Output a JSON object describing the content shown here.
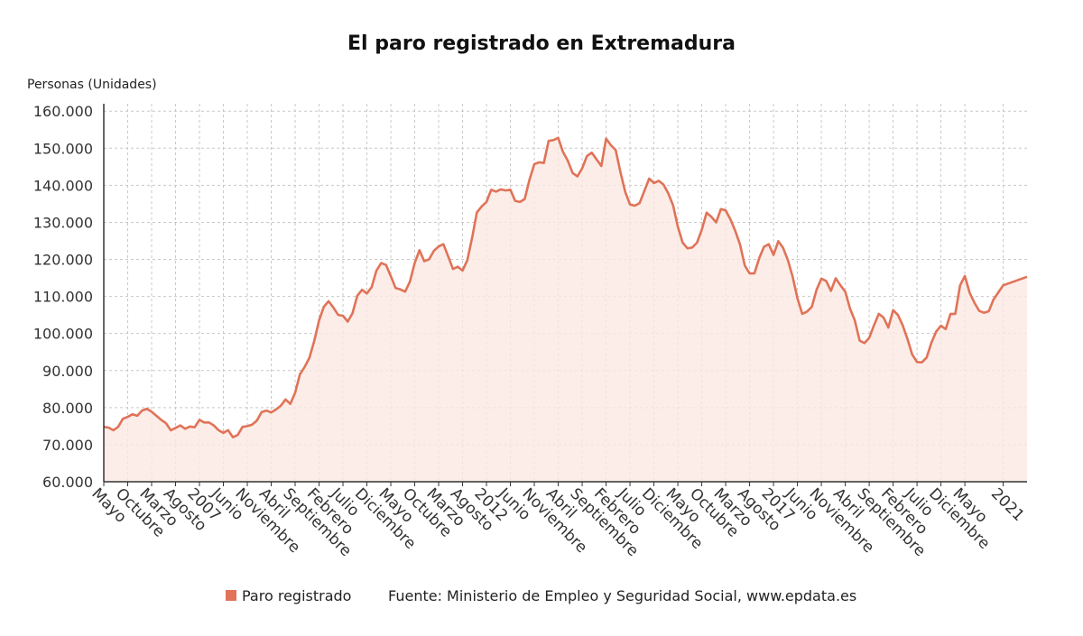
{
  "chart_data": {
    "type": "area",
    "title": "El paro registrado en Extremadura",
    "ylabel": "Personas (Unidades)",
    "ylim": [
      60000,
      162000
    ],
    "yticks": [
      60000,
      70000,
      80000,
      90000,
      100000,
      110000,
      120000,
      130000,
      140000,
      150000,
      160000
    ],
    "ytick_labels": [
      "60.000",
      "70.000",
      "80.000",
      "90.000",
      "100.000",
      "110.000",
      "120.000",
      "130.000",
      "140.000",
      "150.000",
      "160.000"
    ],
    "x_start": "2005-05",
    "x_end": "2021-06",
    "x_ticks": [
      {
        "date": "2005-05",
        "label": "Mayo"
      },
      {
        "date": "2005-10",
        "label": "Octubre"
      },
      {
        "date": "2006-03",
        "label": "Marzo"
      },
      {
        "date": "2006-08",
        "label": "Agosto"
      },
      {
        "date": "2007-01",
        "label": "2007"
      },
      {
        "date": "2007-06",
        "label": "Junio"
      },
      {
        "date": "2007-11",
        "label": "Noviembre"
      },
      {
        "date": "2008-04",
        "label": "Abril"
      },
      {
        "date": "2008-09",
        "label": "Septiembre"
      },
      {
        "date": "2009-02",
        "label": "Febrero"
      },
      {
        "date": "2009-07",
        "label": "Julio"
      },
      {
        "date": "2009-12",
        "label": "Diciembre"
      },
      {
        "date": "2010-05",
        "label": "Mayo"
      },
      {
        "date": "2010-10",
        "label": "Octubre"
      },
      {
        "date": "2011-03",
        "label": "Marzo"
      },
      {
        "date": "2011-08",
        "label": "Agosto"
      },
      {
        "date": "2012-01",
        "label": "2012"
      },
      {
        "date": "2012-06",
        "label": "Junio"
      },
      {
        "date": "2012-11",
        "label": "Noviembre"
      },
      {
        "date": "2013-04",
        "label": "Abril"
      },
      {
        "date": "2013-09",
        "label": "Septiembre"
      },
      {
        "date": "2014-02",
        "label": "Febrero"
      },
      {
        "date": "2014-07",
        "label": "Julio"
      },
      {
        "date": "2014-12",
        "label": "Diciembre"
      },
      {
        "date": "2015-05",
        "label": "Mayo"
      },
      {
        "date": "2015-10",
        "label": "Octubre"
      },
      {
        "date": "2016-03",
        "label": "Marzo"
      },
      {
        "date": "2016-08",
        "label": "Agosto"
      },
      {
        "date": "2017-01",
        "label": "2017"
      },
      {
        "date": "2017-06",
        "label": "Junio"
      },
      {
        "date": "2017-11",
        "label": "Noviembre"
      },
      {
        "date": "2018-04",
        "label": "Abril"
      },
      {
        "date": "2018-09",
        "label": "Septiembre"
      },
      {
        "date": "2019-02",
        "label": "Febrero"
      },
      {
        "date": "2019-07",
        "label": "Julio"
      },
      {
        "date": "2019-12",
        "label": "Diciembre"
      },
      {
        "date": "2020-05",
        "label": "Mayo"
      },
      {
        "date": "2021-01",
        "label": "2021"
      }
    ],
    "grid": true,
    "legend": "bottom",
    "series": [
      {
        "name": "Paro registrado",
        "color": "#e07358",
        "points": [
          [
            "2005-05",
            74800
          ],
          [
            "2005-06",
            74600
          ],
          [
            "2005-07",
            73900
          ],
          [
            "2005-08",
            74800
          ],
          [
            "2005-09",
            77000
          ],
          [
            "2005-10",
            77500
          ],
          [
            "2005-11",
            78200
          ],
          [
            "2005-12",
            77800
          ],
          [
            "2006-01",
            79200
          ],
          [
            "2006-02",
            79700
          ],
          [
            "2006-03",
            78900
          ],
          [
            "2006-04",
            77800
          ],
          [
            "2006-05",
            76700
          ],
          [
            "2006-06",
            75800
          ],
          [
            "2006-07",
            73900
          ],
          [
            "2006-08",
            74500
          ],
          [
            "2006-09",
            75200
          ],
          [
            "2006-10",
            74300
          ],
          [
            "2006-11",
            74900
          ],
          [
            "2006-12",
            74700
          ],
          [
            "2007-01",
            76700
          ],
          [
            "2007-02",
            76000
          ],
          [
            "2007-03",
            76000
          ],
          [
            "2007-04",
            75200
          ],
          [
            "2007-05",
            73900
          ],
          [
            "2007-06",
            73200
          ],
          [
            "2007-07",
            73900
          ],
          [
            "2007-08",
            72000
          ],
          [
            "2007-09",
            72600
          ],
          [
            "2007-10",
            74800
          ],
          [
            "2007-11",
            75000
          ],
          [
            "2007-12",
            75400
          ],
          [
            "2008-01",
            76500
          ],
          [
            "2008-02",
            78800
          ],
          [
            "2008-03",
            79200
          ],
          [
            "2008-04",
            78700
          ],
          [
            "2008-05",
            79500
          ],
          [
            "2008-06",
            80500
          ],
          [
            "2008-07",
            82200
          ],
          [
            "2008-08",
            81000
          ],
          [
            "2008-09",
            84000
          ],
          [
            "2008-10",
            89000
          ],
          [
            "2008-11",
            91000
          ],
          [
            "2008-12",
            93500
          ],
          [
            "2009-01",
            98000
          ],
          [
            "2009-02",
            103500
          ],
          [
            "2009-03",
            107200
          ],
          [
            "2009-04",
            108700
          ],
          [
            "2009-05",
            107000
          ],
          [
            "2009-06",
            105000
          ],
          [
            "2009-07",
            104800
          ],
          [
            "2009-08",
            103200
          ],
          [
            "2009-09",
            105500
          ],
          [
            "2009-10",
            110200
          ],
          [
            "2009-11",
            111800
          ],
          [
            "2009-12",
            110800
          ],
          [
            "2010-01",
            112500
          ],
          [
            "2010-02",
            117000
          ],
          [
            "2010-03",
            119000
          ],
          [
            "2010-04",
            118500
          ],
          [
            "2010-05",
            115500
          ],
          [
            "2010-06",
            112300
          ],
          [
            "2010-07",
            111900
          ],
          [
            "2010-08",
            111300
          ],
          [
            "2010-09",
            114000
          ],
          [
            "2010-10",
            119000
          ],
          [
            "2010-11",
            122500
          ],
          [
            "2010-12",
            119500
          ],
          [
            "2011-01",
            120000
          ],
          [
            "2011-02",
            122300
          ],
          [
            "2011-03",
            123500
          ],
          [
            "2011-04",
            124100
          ],
          [
            "2011-05",
            120800
          ],
          [
            "2011-06",
            117400
          ],
          [
            "2011-07",
            118000
          ],
          [
            "2011-08",
            117000
          ],
          [
            "2011-09",
            119800
          ],
          [
            "2011-10",
            125800
          ],
          [
            "2011-11",
            132700
          ],
          [
            "2011-12",
            134300
          ],
          [
            "2012-01",
            135500
          ],
          [
            "2012-02",
            138800
          ],
          [
            "2012-03",
            138300
          ],
          [
            "2012-04",
            138900
          ],
          [
            "2012-05",
            138600
          ],
          [
            "2012-06",
            138800
          ],
          [
            "2012-07",
            135800
          ],
          [
            "2012-08",
            135500
          ],
          [
            "2012-09",
            136300
          ],
          [
            "2012-10",
            141500
          ],
          [
            "2012-11",
            145700
          ],
          [
            "2012-12",
            146200
          ],
          [
            "2013-01",
            146000
          ],
          [
            "2013-02",
            152000
          ],
          [
            "2013-03",
            152200
          ],
          [
            "2013-04",
            152800
          ],
          [
            "2013-05",
            149000
          ],
          [
            "2013-06",
            146600
          ],
          [
            "2013-07",
            143300
          ],
          [
            "2013-08",
            142400
          ],
          [
            "2013-09",
            144600
          ],
          [
            "2013-10",
            147900
          ],
          [
            "2013-11",
            148800
          ],
          [
            "2013-12",
            147000
          ],
          [
            "2014-01",
            145200
          ],
          [
            "2014-02",
            152600
          ],
          [
            "2014-03",
            150800
          ],
          [
            "2014-04",
            149500
          ],
          [
            "2014-05",
            143500
          ],
          [
            "2014-06",
            138200
          ],
          [
            "2014-07",
            134800
          ],
          [
            "2014-08",
            134500
          ],
          [
            "2014-09",
            135200
          ],
          [
            "2014-10",
            138500
          ],
          [
            "2014-11",
            141800
          ],
          [
            "2014-12",
            140600
          ],
          [
            "2015-01",
            141200
          ],
          [
            "2015-02",
            140200
          ],
          [
            "2015-03",
            137800
          ],
          [
            "2015-04",
            134600
          ],
          [
            "2015-05",
            128800
          ],
          [
            "2015-06",
            124500
          ],
          [
            "2015-07",
            123000
          ],
          [
            "2015-08",
            123200
          ],
          [
            "2015-09",
            124500
          ],
          [
            "2015-10",
            128000
          ],
          [
            "2015-11",
            132600
          ],
          [
            "2015-12",
            131500
          ],
          [
            "2016-01",
            130000
          ],
          [
            "2016-02",
            133600
          ],
          [
            "2016-03",
            133200
          ],
          [
            "2016-04",
            130800
          ],
          [
            "2016-05",
            127700
          ],
          [
            "2016-06",
            124000
          ],
          [
            "2016-07",
            118300
          ],
          [
            "2016-08",
            116200
          ],
          [
            "2016-09",
            116200
          ],
          [
            "2016-10",
            120300
          ],
          [
            "2016-11",
            123400
          ],
          [
            "2016-12",
            124100
          ],
          [
            "2017-01",
            121200
          ],
          [
            "2017-02",
            124900
          ],
          [
            "2017-03",
            123100
          ],
          [
            "2017-04",
            119800
          ],
          [
            "2017-05",
            115300
          ],
          [
            "2017-06",
            109500
          ],
          [
            "2017-07",
            105300
          ],
          [
            "2017-08",
            105900
          ],
          [
            "2017-09",
            107200
          ],
          [
            "2017-10",
            111800
          ],
          [
            "2017-11",
            114800
          ],
          [
            "2017-12",
            114200
          ],
          [
            "2018-01",
            111500
          ],
          [
            "2018-02",
            114900
          ],
          [
            "2018-03",
            113000
          ],
          [
            "2018-04",
            111300
          ],
          [
            "2018-05",
            106700
          ],
          [
            "2018-06",
            103500
          ],
          [
            "2018-07",
            98100
          ],
          [
            "2018-08",
            97400
          ],
          [
            "2018-09",
            98800
          ],
          [
            "2018-10",
            102200
          ],
          [
            "2018-11",
            105300
          ],
          [
            "2018-12",
            104300
          ],
          [
            "2019-01",
            101600
          ],
          [
            "2019-02",
            106300
          ],
          [
            "2019-03",
            105000
          ],
          [
            "2019-04",
            102200
          ],
          [
            "2019-05",
            98500
          ],
          [
            "2019-06",
            94300
          ],
          [
            "2019-07",
            92300
          ],
          [
            "2019-08",
            92200
          ],
          [
            "2019-09",
            93500
          ],
          [
            "2019-10",
            97500
          ],
          [
            "2019-11",
            100500
          ],
          [
            "2019-12",
            102100
          ],
          [
            "2020-01",
            101200
          ],
          [
            "2020-02",
            105300
          ],
          [
            "2020-03",
            105300
          ],
          [
            "2020-04",
            113000
          ],
          [
            "2020-05",
            115500
          ],
          [
            "2020-06",
            111000
          ],
          [
            "2020-07",
            108300
          ],
          [
            "2020-08",
            106100
          ],
          [
            "2020-09",
            105600
          ],
          [
            "2020-10",
            106000
          ],
          [
            "2020-11",
            109200
          ],
          [
            "2020-12",
            111100
          ],
          [
            "2021-01",
            113000
          ],
          [
            "2021-06",
            115300
          ]
        ]
      }
    ]
  },
  "legend": {
    "label": "Paro registrado",
    "source": "Fuente: Ministerio de Empleo y Seguridad Social, www.epdata.es"
  }
}
